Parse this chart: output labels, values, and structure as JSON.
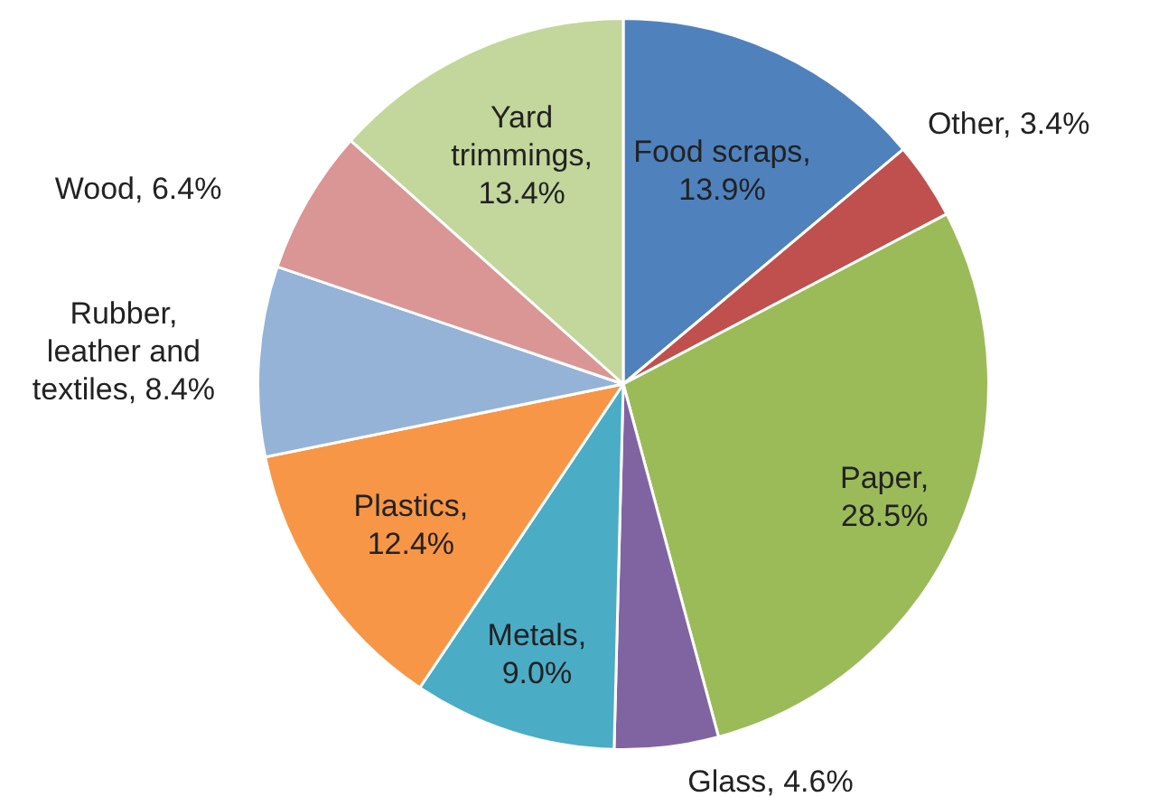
{
  "chart_data": {
    "type": "pie",
    "categories": [
      "Food scraps",
      "Other",
      "Paper",
      "Glass",
      "Metals",
      "Plastics",
      "Rubber, leather and textiles",
      "Wood",
      "Yard trimmings"
    ],
    "values": [
      13.9,
      3.4,
      28.5,
      4.6,
      9.0,
      12.4,
      8.4,
      6.4,
      13.4
    ],
    "colors": [
      "#4f81bd",
      "#c0504d",
      "#9bbb59",
      "#8064a2",
      "#4bacc6",
      "#f79646",
      "#95b3d7",
      "#d99694",
      "#c3d69b"
    ],
    "value_labels": [
      ", 13.9%",
      ", 3.4%",
      ", 28.5%",
      ", 4.6%",
      ", 9.0%",
      ", 12.4%",
      ", 8.4%",
      ", 6.4%",
      ", 13.4%"
    ],
    "legend": false
  }
}
